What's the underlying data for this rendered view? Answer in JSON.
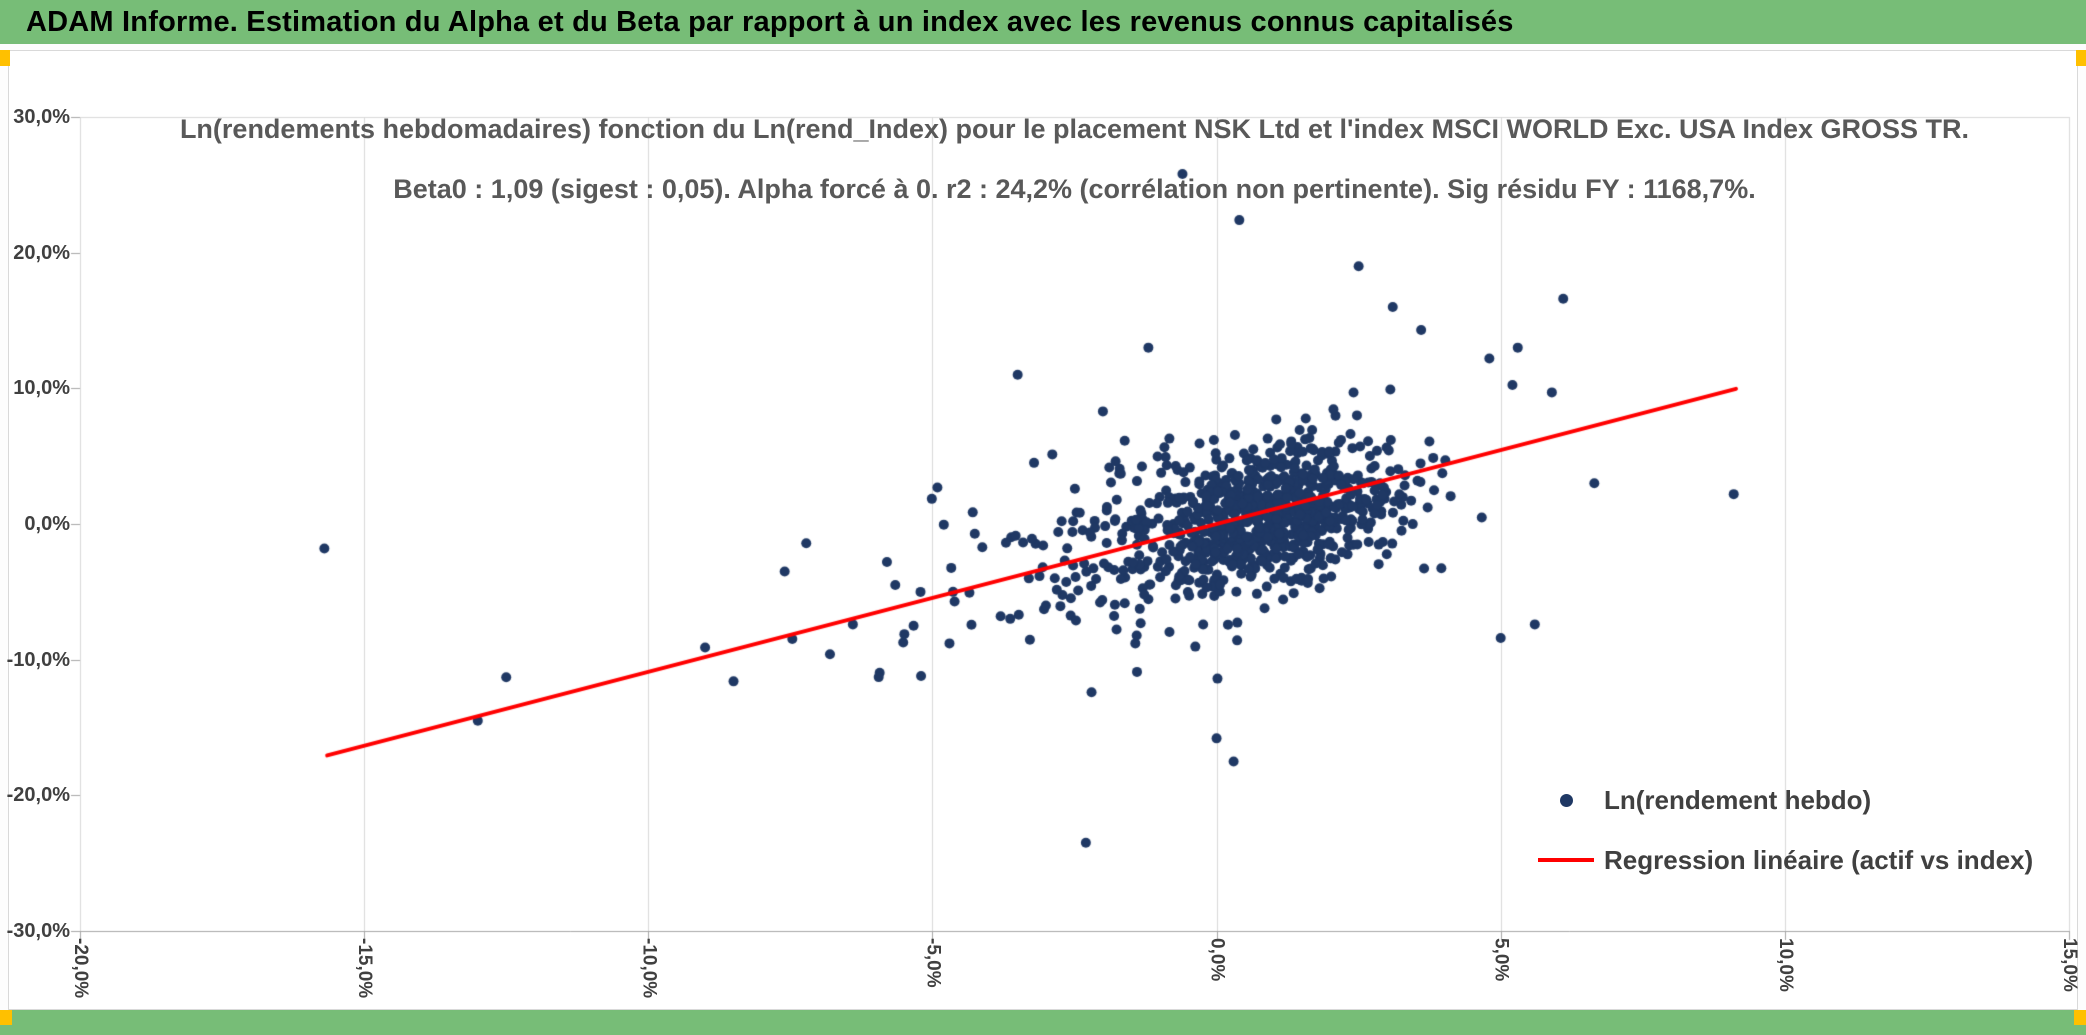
{
  "header": {
    "title": "ADAM Informe. Estimation du Alpha et du Beta par rapport à un index avec les revenus connus capitalisés",
    "bar_color": "#77bd77",
    "accent_color": "#ffc000",
    "text_color": "#000000"
  },
  "chart": {
    "title_line1": "Ln(rendements hebdomadaires) fonction du Ln(rend_Index) pour le placement NSK Ltd et l'index MSCI WORLD Exc. USA Index GROSS TR.",
    "title_line2": "Beta0 : 1,09 (sigest : 0,05). Alpha forcé à 0. r2 : 24,2% (corrélation non pertinente). Sig résidu FY : 1168,7%.",
    "legend": [
      {
        "label": "Ln(rendement hebdo)",
        "marker": "dot",
        "color": "#1f3864"
      },
      {
        "label": "Regression linéaire (actif vs index)",
        "marker": "line",
        "color": "#ff0000"
      }
    ]
  },
  "chart_data": {
    "type": "scatter",
    "title": "Ln(rendements hebdomadaires) fonction du Ln(rend_Index) pour le placement NSK Ltd et l'index MSCI WORLD Exc. USA Index GROSS TR.",
    "subtitle": "Beta0 : 1,09 (sigest : 0,05). Alpha forcé à 0. r2 : 24,2% (corrélation non pertinente). Sig résidu FY : 1168,7%.",
    "xlabel": "",
    "ylabel": "",
    "xlim": [
      -0.2,
      0.15
    ],
    "ylim": [
      -0.3,
      0.3
    ],
    "x_ticks": [
      "-20,0%",
      "-15,0%",
      "-10,0%",
      "-5,0%",
      "0,0%",
      "5,0%",
      "10,0%",
      "15,0%"
    ],
    "x_tick_values": [
      -0.2,
      -0.15,
      -0.1,
      -0.05,
      0,
      0.05,
      0.1,
      0.15
    ],
    "y_ticks": [
      "30,0%",
      "20,0%",
      "10,0%",
      "0,0%",
      "-10,0%",
      "-20,0%",
      "-30,0%"
    ],
    "y_tick_values": [
      0.3,
      0.2,
      0.1,
      0,
      -0.1,
      -0.2,
      -0.3
    ],
    "grid": "vertical-only",
    "legend_position": "inside-bottom-right",
    "stats": {
      "beta0": "1,09",
      "sigest": "0,05",
      "alpha": "forcé à 0",
      "r2": "24,2%",
      "sig_residu_FY": "1168,7%"
    },
    "point_color": "#1f3864",
    "colors": {
      "gridline": "#d9d9d9",
      "axis": "#a6a6a6",
      "title": "#595959",
      "tick_text": "#404040"
    },
    "regression": {
      "beta": 1.09,
      "alpha": 0,
      "x_start": -0.1565,
      "x_end": 0.0914,
      "color": "#ff0000"
    },
    "notable_points": [
      [
        -0.157,
        -0.018
      ],
      [
        -0.13,
        -0.145
      ],
      [
        -0.125,
        -0.113
      ],
      [
        -0.09,
        -0.091
      ],
      [
        -0.085,
        -0.116
      ],
      [
        -0.076,
        -0.035
      ],
      [
        -0.064,
        -0.074
      ],
      [
        -0.058,
        -0.028
      ],
      [
        -0.052,
        -0.112
      ],
      [
        -0.047,
        -0.088
      ],
      [
        -0.038,
        -0.068
      ],
      [
        -0.035,
        0.11
      ],
      [
        -0.023,
        -0.235
      ],
      [
        -0.022,
        -0.124
      ],
      [
        -0.02,
        0.083
      ],
      [
        -0.014,
        -0.109
      ],
      [
        -0.012,
        0.13
      ],
      [
        -0.006,
        0.258
      ],
      [
        0.0,
        -0.158
      ],
      [
        0.003,
        -0.175
      ],
      [
        0.004,
        0.224
      ],
      [
        0.025,
        0.19
      ],
      [
        0.031,
        0.16
      ],
      [
        0.036,
        0.143
      ],
      [
        0.048,
        0.122
      ],
      [
        0.053,
        0.13
      ],
      [
        0.056,
        -0.074
      ],
      [
        0.05,
        -0.084
      ],
      [
        0.059,
        0.097
      ],
      [
        0.061,
        0.166
      ],
      [
        0.091,
        0.022
      ]
    ],
    "scatter_cloud_spec": {
      "note": "Dense weekly-return cloud approximated from pixels; ~950 points centered near (0,0), r2 24,2%",
      "seed": 42,
      "clusters": [
        {
          "n": 620,
          "mean": [
            0.009,
            0.006
          ],
          "std": [
            0.0105,
            0.024
          ],
          "rho": 0.25
        },
        {
          "n": 280,
          "mean": [
            0.002,
            0.0
          ],
          "std": [
            0.019,
            0.04
          ],
          "rho": 0.45
        },
        {
          "n": 55,
          "mean": [
            -0.028,
            -0.03
          ],
          "std": [
            0.022,
            0.038
          ],
          "rho": 0.35
        }
      ],
      "clip": {
        "x": [
          -0.17,
          0.125
        ],
        "y": [
          -0.26,
          0.27
        ]
      }
    }
  }
}
